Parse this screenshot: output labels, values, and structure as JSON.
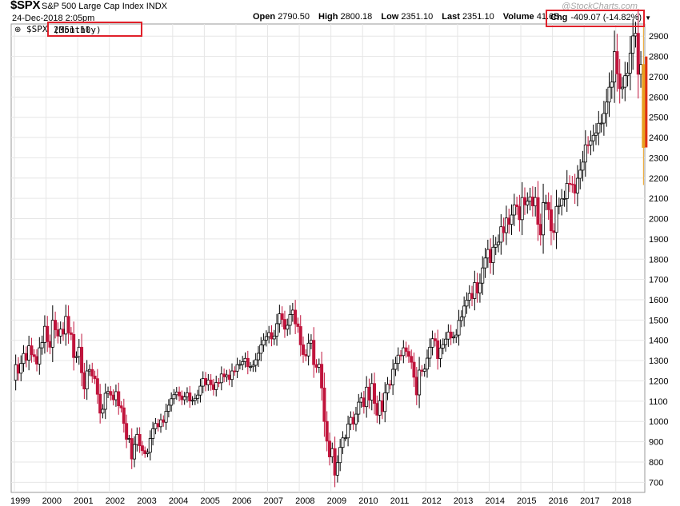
{
  "header": {
    "symbol": "$SPX",
    "name": "S&P 500 Large Cap Index",
    "exchange": "INDX",
    "date": "24-Dec-2018 2:05pm",
    "open_label": "Open",
    "open_value": "2790.50",
    "high_label": "High",
    "high_value": "2800.18",
    "low_label": "Low",
    "low_value": "2351.10",
    "last_label": "Last",
    "last_value": "2351.10",
    "volume_label": "Volume",
    "volume_value": "41.6B",
    "chg_label": "Chg",
    "chg_value": "-409.07 (-14.82%)",
    "watermark": "@StockCharts.com"
  },
  "legend": {
    "symbol": "$SPX",
    "period": "(Monthly)",
    "value": "2351.10"
  },
  "colors": {
    "up": "#000000",
    "down": "#c0143c",
    "last_bar": "#e8a020",
    "highlight_box": "#e0202a",
    "grid": "#e6e6e6"
  },
  "chart_data": {
    "type": "candlestick",
    "period": "monthly",
    "x_start": "1999-01",
    "ylim": [
      650,
      2960
    ],
    "y_ticks": [
      700,
      800,
      900,
      1000,
      1100,
      1200,
      1300,
      1400,
      1500,
      1600,
      1700,
      1800,
      1900,
      2000,
      2100,
      2200,
      2300,
      2400,
      2500,
      2600,
      2700,
      2800,
      2900
    ],
    "x_tick_labels": [
      "1999",
      "2000",
      "2001",
      "2002",
      "2003",
      "2004",
      "2005",
      "2006",
      "2007",
      "2008",
      "2009",
      "2010",
      "2011",
      "2012",
      "2013",
      "2014",
      "2015",
      "2016",
      "2017",
      "2018"
    ],
    "grid": true,
    "closes": [
      1280,
      1238,
      1286,
      1335,
      1302,
      1373,
      1329,
      1320,
      1283,
      1363,
      1389,
      1469,
      1394,
      1366,
      1499,
      1452,
      1421,
      1455,
      1431,
      1518,
      1437,
      1429,
      1315,
      1320,
      1366,
      1240,
      1160,
      1249,
      1256,
      1224,
      1211,
      1134,
      1041,
      1060,
      1139,
      1148,
      1130,
      1107,
      1147,
      1077,
      1067,
      990,
      912,
      916,
      815,
      886,
      936,
      880,
      856,
      841,
      848,
      916,
      964,
      990,
      974,
      1008,
      996,
      1050,
      1080,
      1112,
      1132,
      1145,
      1126,
      1107,
      1121,
      1141,
      1101,
      1104,
      1114,
      1130,
      1174,
      1212,
      1181,
      1204,
      1181,
      1157,
      1192,
      1191,
      1234,
      1220,
      1229,
      1207,
      1249,
      1248,
      1280,
      1281,
      1295,
      1311,
      1270,
      1270,
      1277,
      1304,
      1336,
      1377,
      1401,
      1418,
      1438,
      1407,
      1421,
      1482,
      1531,
      1503,
      1455,
      1474,
      1527,
      1549,
      1481,
      1468,
      1378,
      1330,
      1323,
      1386,
      1400,
      1280,
      1267,
      1282,
      1165,
      1000,
      903,
      825,
      866,
      735,
      797,
      872,
      919,
      919,
      987,
      1020,
      987,
      1036,
      1095,
      1116,
      1073,
      1169,
      1105,
      1187,
      1089,
      1031,
      1102,
      1049,
      1141,
      1183,
      1180,
      1257,
      1286,
      1327,
      1325,
      1363,
      1345,
      1321,
      1292,
      1218,
      1131,
      1253,
      1247,
      1258,
      1312,
      1366,
      1408,
      1398,
      1310,
      1362,
      1379,
      1406,
      1441,
      1412,
      1416,
      1426,
      1498,
      1515,
      1569,
      1598,
      1631,
      1606,
      1685,
      1633,
      1682,
      1757,
      1806,
      1848,
      1783,
      1859,
      1872,
      1884,
      1960,
      1931,
      2003,
      1972,
      2018,
      2068,
      2059,
      1995,
      2104,
      2068,
      2086,
      2107,
      2063,
      2104,
      1972,
      1920,
      2079,
      2080,
      2044,
      1940,
      1932,
      2060,
      2065,
      2097,
      2099,
      2174,
      2171,
      2168,
      2126,
      2199,
      2239,
      2279,
      2364,
      2363,
      2384,
      2411,
      2423,
      2470,
      2471,
      2519,
      2575,
      2648,
      2674,
      2824,
      2714,
      2641,
      2648,
      2705,
      2718,
      2816,
      2901,
      2914,
      2712,
      2760,
      2351
    ]
  }
}
